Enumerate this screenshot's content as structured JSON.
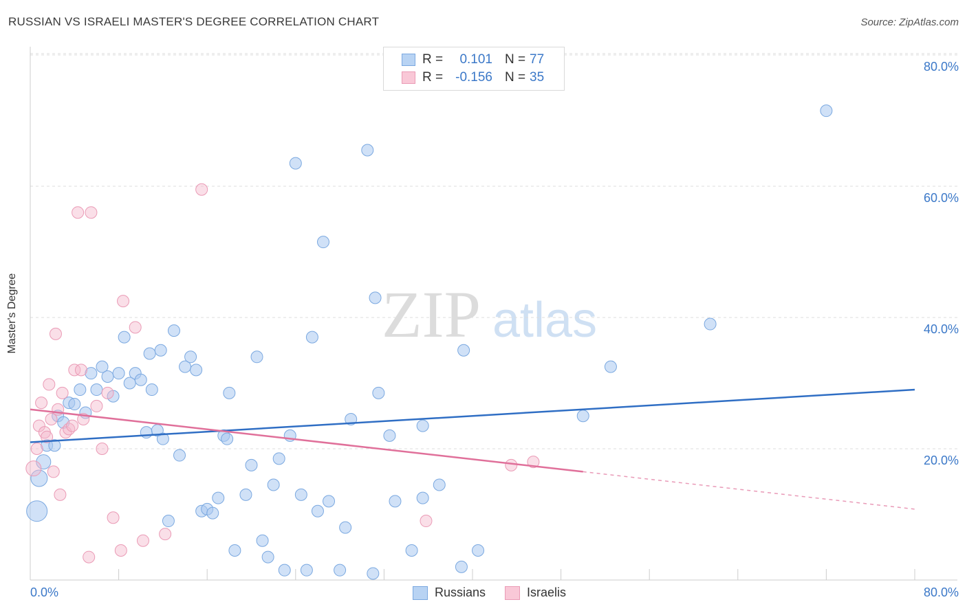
{
  "title": "RUSSIAN VS ISRAELI MASTER'S DEGREE CORRELATION CHART",
  "source": "Source: ZipAtlas.com",
  "watermark": {
    "zip": "ZIP",
    "atlas": "atlas"
  },
  "colors": {
    "russians": "#3b78c8",
    "russians_fill": "#a9c8f0",
    "israelis": "#e0709a",
    "israelis_fill": "#f5b8cb",
    "tick_text": "#3b78c8"
  },
  "legend": {
    "rows": [
      {
        "r_label": "R =",
        "r_value": "0.101",
        "n_label": "N =",
        "n_value": "77"
      },
      {
        "r_label": "R =",
        "r_value": "-0.156",
        "n_label": "N =",
        "n_value": "35"
      }
    ]
  },
  "bottom_legend": [
    "Russians",
    "Israelis"
  ],
  "chart_data": {
    "type": "scatter",
    "ylabel": "Master's Degree",
    "xlim": [
      0,
      80
    ],
    "ylim": [
      0,
      80
    ],
    "x_tick_labels": [
      "0.0%",
      "80.0%"
    ],
    "y_tick_labels": [
      "20.0%",
      "40.0%",
      "60.0%",
      "80.0%"
    ],
    "y_ticks": [
      20,
      40,
      60,
      80
    ],
    "series": [
      {
        "name": "Russians",
        "points": [
          [
            0.6,
            10.5
          ],
          [
            0.8,
            15.5
          ],
          [
            1.2,
            18.0
          ],
          [
            1.5,
            20.5
          ],
          [
            2.2,
            20.5
          ],
          [
            2.5,
            25.0
          ],
          [
            3.0,
            24.0
          ],
          [
            3.5,
            27.0
          ],
          [
            4.0,
            26.8
          ],
          [
            4.5,
            29.0
          ],
          [
            5.0,
            25.5
          ],
          [
            5.5,
            31.5
          ],
          [
            6.0,
            29.0
          ],
          [
            6.5,
            32.5
          ],
          [
            7.0,
            31.0
          ],
          [
            7.5,
            28.0
          ],
          [
            8.0,
            31.5
          ],
          [
            8.5,
            37.0
          ],
          [
            9.0,
            30.0
          ],
          [
            9.5,
            31.5
          ],
          [
            10.0,
            30.5
          ],
          [
            10.5,
            22.5
          ],
          [
            10.8,
            34.5
          ],
          [
            11.0,
            29.0
          ],
          [
            11.5,
            22.8
          ],
          [
            11.8,
            35.0
          ],
          [
            12.0,
            21.5
          ],
          [
            12.5,
            9.0
          ],
          [
            13.0,
            38.0
          ],
          [
            13.5,
            19.0
          ],
          [
            14.0,
            32.5
          ],
          [
            14.5,
            34.0
          ],
          [
            15.0,
            32.0
          ],
          [
            15.5,
            10.5
          ],
          [
            16.0,
            10.8
          ],
          [
            16.5,
            10.2
          ],
          [
            17.0,
            12.5
          ],
          [
            17.5,
            22.0
          ],
          [
            17.8,
            21.5
          ],
          [
            18.0,
            28.5
          ],
          [
            18.5,
            4.5
          ],
          [
            19.5,
            13.0
          ],
          [
            20.0,
            17.5
          ],
          [
            20.5,
            34.0
          ],
          [
            21.0,
            6.0
          ],
          [
            21.5,
            3.5
          ],
          [
            22.0,
            14.5
          ],
          [
            22.5,
            18.5
          ],
          [
            23.0,
            1.5
          ],
          [
            23.5,
            22.0
          ],
          [
            24.0,
            63.5
          ],
          [
            24.5,
            13.0
          ],
          [
            25.0,
            1.5
          ],
          [
            25.5,
            37.0
          ],
          [
            26.0,
            10.5
          ],
          [
            26.5,
            51.5
          ],
          [
            27.0,
            12.0
          ],
          [
            28.0,
            1.5
          ],
          [
            28.5,
            8.0
          ],
          [
            29.0,
            24.5
          ],
          [
            30.5,
            65.5
          ],
          [
            31.0,
            1.0
          ],
          [
            31.2,
            43.0
          ],
          [
            31.5,
            28.5
          ],
          [
            32.5,
            22.0
          ],
          [
            33.0,
            12.0
          ],
          [
            34.5,
            4.5
          ],
          [
            35.5,
            23.5
          ],
          [
            35.5,
            12.5
          ],
          [
            37.0,
            14.5
          ],
          [
            39.0,
            2.0
          ],
          [
            39.2,
            35.0
          ],
          [
            40.5,
            4.5
          ],
          [
            50.0,
            25.0
          ],
          [
            52.5,
            32.5
          ],
          [
            61.5,
            39.0
          ],
          [
            72.0,
            71.5
          ]
        ]
      },
      {
        "name": "Israelis",
        "points": [
          [
            0.3,
            17.0
          ],
          [
            0.6,
            20.0
          ],
          [
            0.8,
            23.5
          ],
          [
            1.0,
            27.0
          ],
          [
            1.3,
            22.5
          ],
          [
            1.5,
            21.8
          ],
          [
            1.7,
            29.8
          ],
          [
            1.9,
            24.5
          ],
          [
            2.1,
            16.5
          ],
          [
            2.3,
            37.5
          ],
          [
            2.5,
            26.0
          ],
          [
            2.7,
            13.0
          ],
          [
            2.9,
            28.5
          ],
          [
            3.2,
            22.5
          ],
          [
            3.5,
            23.0
          ],
          [
            3.8,
            23.5
          ],
          [
            4.0,
            32.0
          ],
          [
            4.3,
            56.0
          ],
          [
            4.6,
            32.0
          ],
          [
            4.8,
            24.5
          ],
          [
            5.3,
            3.5
          ],
          [
            5.5,
            56.0
          ],
          [
            6.0,
            26.5
          ],
          [
            6.5,
            20.0
          ],
          [
            7.0,
            28.5
          ],
          [
            7.5,
            9.5
          ],
          [
            8.2,
            4.5
          ],
          [
            8.4,
            42.5
          ],
          [
            9.5,
            38.5
          ],
          [
            10.2,
            6.0
          ],
          [
            12.2,
            7.0
          ],
          [
            15.5,
            59.5
          ],
          [
            35.8,
            9.0
          ],
          [
            43.5,
            17.5
          ],
          [
            45.5,
            18.0
          ]
        ]
      }
    ],
    "trend_lines": [
      {
        "series": "Russians",
        "x": [
          0,
          80
        ],
        "y": [
          21.0,
          29.0
        ],
        "dashed_to": null
      },
      {
        "series": "Israelis",
        "x": [
          0,
          50
        ],
        "y": [
          26.0,
          16.5
        ],
        "dashed_to": [
          80,
          10.8
        ]
      }
    ],
    "grid": true,
    "legend_position": "top-center"
  }
}
